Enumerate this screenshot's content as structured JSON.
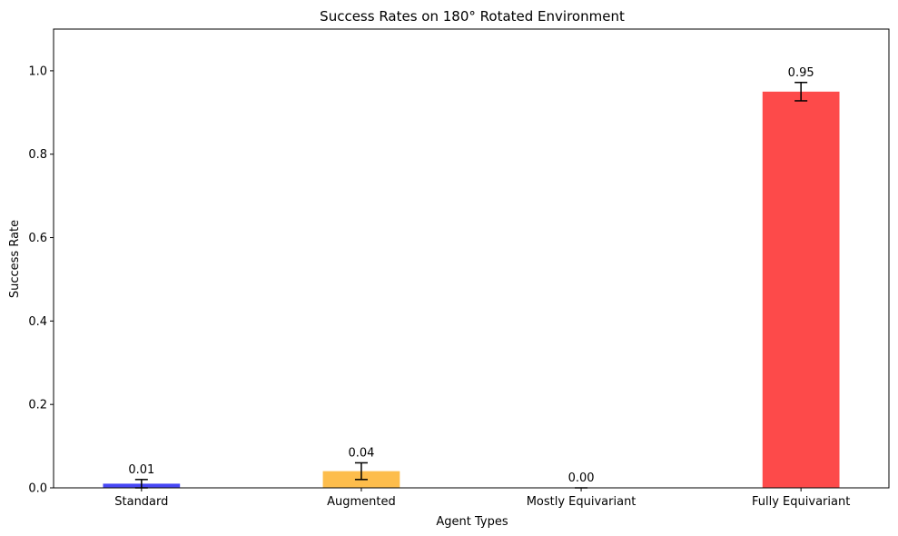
{
  "chart_data": {
    "type": "bar",
    "title": "Success Rates on 180° Rotated Environment",
    "xlabel": "Agent Types",
    "ylabel": "Success Rate",
    "categories": [
      "Standard",
      "Augmented",
      "Mostly Equivariant",
      "Fully Equivariant"
    ],
    "values": [
      0.01,
      0.04,
      0.0,
      0.95
    ],
    "errors": [
      0.01,
      0.02,
      0.0,
      0.022
    ],
    "data_labels": [
      "0.01",
      "0.04",
      "0.00",
      "0.95"
    ],
    "colors": [
      "#4747f5",
      "#fdbd4c",
      "#47f547",
      "#fd4a4a"
    ],
    "ylim": [
      0,
      1.1
    ],
    "yticks": [
      0.0,
      0.2,
      0.4,
      0.6,
      0.8,
      1.0
    ],
    "ytick_labels": [
      "0.0",
      "0.2",
      "0.4",
      "0.6",
      "0.8",
      "1.0"
    ],
    "grid": false,
    "legend": "none"
  }
}
